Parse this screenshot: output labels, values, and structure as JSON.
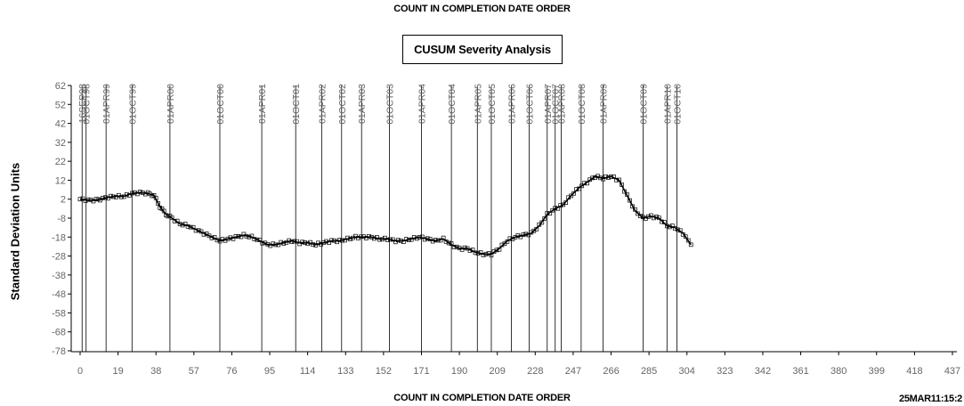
{
  "page": {
    "top_title": "COUNT IN COMPLETION DATE ORDER",
    "timestamp": "25MAR11:15:2"
  },
  "chart_data": {
    "type": "line",
    "title": "CUSUM Severity Analysis",
    "xlabel": "COUNT IN COMPLETION DATE ORDER",
    "ylabel": "Standard Deviation Units",
    "xlim": [
      0,
      437
    ],
    "ylim": [
      -78,
      62
    ],
    "x_ticks": [
      0,
      19,
      38,
      57,
      76,
      95,
      114,
      133,
      152,
      171,
      190,
      209,
      228,
      247,
      266,
      285,
      304,
      323,
      342,
      361,
      380,
      399,
      418,
      437
    ],
    "y_ticks": [
      62,
      52,
      42,
      32,
      22,
      12,
      2,
      -8,
      -18,
      -28,
      -38,
      -48,
      -58,
      -68,
      -78
    ],
    "marker": "square",
    "line_color": "#000000",
    "grid": false,
    "reference_lines": [
      {
        "x": 1,
        "label": "16SEP98"
      },
      {
        "x": 3,
        "label": "01OCT98"
      },
      {
        "x": 13,
        "label": "01APR99"
      },
      {
        "x": 26,
        "label": "01OCT99"
      },
      {
        "x": 45,
        "label": "01APR00"
      },
      {
        "x": 70,
        "label": "01OCT00"
      },
      {
        "x": 91,
        "label": "01APR01"
      },
      {
        "x": 108,
        "label": "01OCT01"
      },
      {
        "x": 121,
        "label": "01APR02"
      },
      {
        "x": 131,
        "label": "01OCT02"
      },
      {
        "x": 141,
        "label": "01APR03"
      },
      {
        "x": 155,
        "label": "01OCT03"
      },
      {
        "x": 171,
        "label": "01APR04"
      },
      {
        "x": 186,
        "label": "01OCT04"
      },
      {
        "x": 199,
        "label": "01APR05"
      },
      {
        "x": 206,
        "label": "01OCT05"
      },
      {
        "x": 216,
        "label": "01APR06"
      },
      {
        "x": 225,
        "label": "01OCT06"
      },
      {
        "x": 234,
        "label": "01APR07"
      },
      {
        "x": 238,
        "label": "01OCT07"
      },
      {
        "x": 241,
        "label": "01APR08"
      },
      {
        "x": 251,
        "label": "01OCT08"
      },
      {
        "x": 262,
        "label": "01APR09"
      },
      {
        "x": 282,
        "label": "01OCT09"
      },
      {
        "x": 294,
        "label": "01APR10"
      },
      {
        "x": 299,
        "label": "01OCT10"
      }
    ],
    "series": [
      {
        "points": [
          [
            0,
            2
          ],
          [
            4,
            1.5
          ],
          [
            8,
            1.5
          ],
          [
            10,
            2
          ],
          [
            14,
            3
          ],
          [
            18,
            3.5
          ],
          [
            22,
            3.5
          ],
          [
            26,
            5
          ],
          [
            30,
            5.5
          ],
          [
            34,
            5
          ],
          [
            37,
            4
          ],
          [
            40,
            -2
          ],
          [
            43,
            -6
          ],
          [
            46,
            -8
          ],
          [
            50,
            -11
          ],
          [
            54,
            -12
          ],
          [
            58,
            -14
          ],
          [
            62,
            -16
          ],
          [
            66,
            -18
          ],
          [
            70,
            -20
          ],
          [
            74,
            -19
          ],
          [
            78,
            -18
          ],
          [
            82,
            -17
          ],
          [
            86,
            -18
          ],
          [
            90,
            -20
          ],
          [
            94,
            -22
          ],
          [
            98,
            -22
          ],
          [
            102,
            -21
          ],
          [
            106,
            -20
          ],
          [
            110,
            -21
          ],
          [
            114,
            -21
          ],
          [
            118,
            -22
          ],
          [
            122,
            -21
          ],
          [
            126,
            -20
          ],
          [
            130,
            -20
          ],
          [
            134,
            -19
          ],
          [
            138,
            -18
          ],
          [
            142,
            -18
          ],
          [
            146,
            -18
          ],
          [
            150,
            -19
          ],
          [
            154,
            -19
          ],
          [
            158,
            -20
          ],
          [
            162,
            -20
          ],
          [
            166,
            -19
          ],
          [
            170,
            -18
          ],
          [
            174,
            -19
          ],
          [
            178,
            -20
          ],
          [
            182,
            -19
          ],
          [
            186,
            -22
          ],
          [
            190,
            -24
          ],
          [
            194,
            -24
          ],
          [
            198,
            -26
          ],
          [
            202,
            -27
          ],
          [
            206,
            -27
          ],
          [
            210,
            -24
          ],
          [
            214,
            -20
          ],
          [
            218,
            -18
          ],
          [
            222,
            -17
          ],
          [
            226,
            -16
          ],
          [
            230,
            -12
          ],
          [
            234,
            -6
          ],
          [
            238,
            -3
          ],
          [
            242,
            -1
          ],
          [
            246,
            4
          ],
          [
            250,
            8
          ],
          [
            254,
            11
          ],
          [
            258,
            14
          ],
          [
            262,
            13
          ],
          [
            266,
            14
          ],
          [
            270,
            12
          ],
          [
            274,
            4
          ],
          [
            278,
            -4
          ],
          [
            282,
            -8
          ],
          [
            286,
            -7
          ],
          [
            290,
            -8
          ],
          [
            294,
            -12
          ],
          [
            298,
            -13
          ],
          [
            302,
            -16
          ],
          [
            306,
            -22
          ]
        ]
      }
    ]
  }
}
